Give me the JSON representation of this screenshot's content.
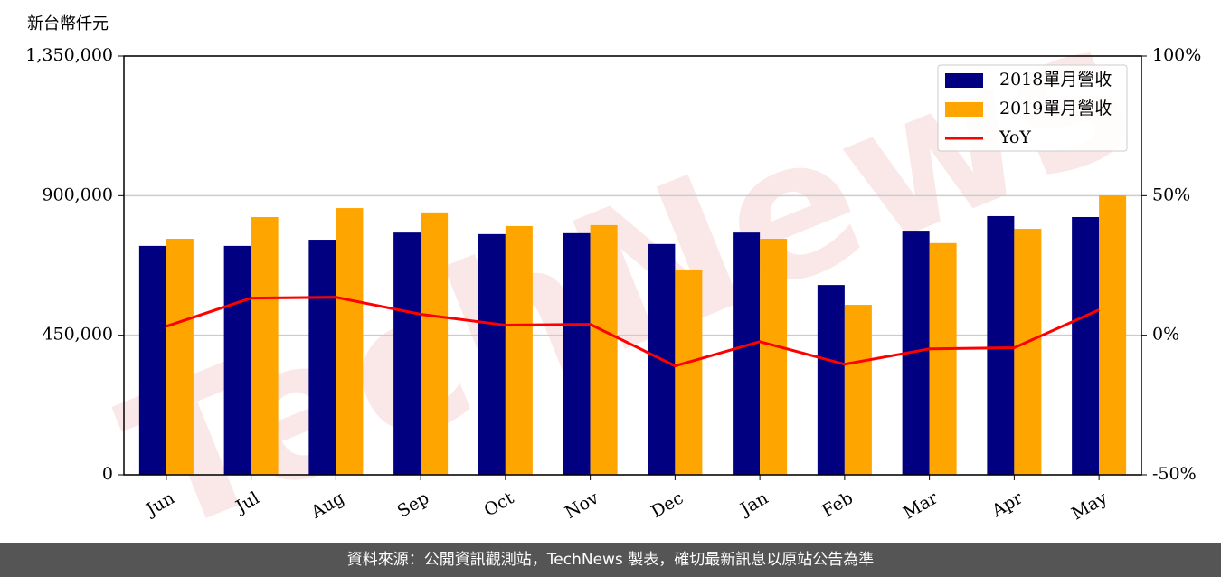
{
  "chart_data": {
    "type": "bar",
    "ylabel": "新台幣仟元",
    "watermark": "TechNews",
    "categories": [
      "Jun",
      "Jul",
      "Aug",
      "Sep",
      "Oct",
      "Nov",
      "Dec",
      "Jan",
      "Feb",
      "Mar",
      "Apr",
      "May"
    ],
    "series": [
      {
        "name": "2018單月營收",
        "color": "#000080",
        "values": [
          738000,
          738000,
          758000,
          781000,
          776000,
          779000,
          744000,
          781000,
          612000,
          787000,
          834000,
          831000
        ]
      },
      {
        "name": "2019單月營收",
        "color": "#ffa500",
        "values": [
          761000,
          831000,
          860000,
          846000,
          802000,
          805000,
          662000,
          761000,
          548000,
          747000,
          793000,
          901000
        ]
      },
      {
        "name": "YoY",
        "color": "#ff0000",
        "type": "line",
        "axis": "y2",
        "values": [
          3.2,
          13.3,
          13.6,
          7.5,
          3.6,
          3.9,
          -11.0,
          -2.3,
          -10.4,
          -4.9,
          -4.5,
          9.1
        ]
      }
    ],
    "ylim": [
      0,
      1350000
    ],
    "yticks": [
      {
        "value": 0,
        "label": "0"
      },
      {
        "value": 450000,
        "label": "450,000"
      },
      {
        "value": 900000,
        "label": "900,000"
      },
      {
        "value": 1350000,
        "label": "1,350,000"
      }
    ],
    "y2lim": [
      -50,
      100
    ],
    "y2ticks": [
      {
        "value": -50,
        "label": "-50%"
      },
      {
        "value": 0,
        "label": "0%"
      },
      {
        "value": 50,
        "label": "50%"
      },
      {
        "value": 100,
        "label": "100%"
      }
    ],
    "grid": true,
    "legend": "upper right"
  },
  "footer": "資料來源：公開資訊觀測站，TechNews 製表，確切最新訊息以原站公告為準"
}
